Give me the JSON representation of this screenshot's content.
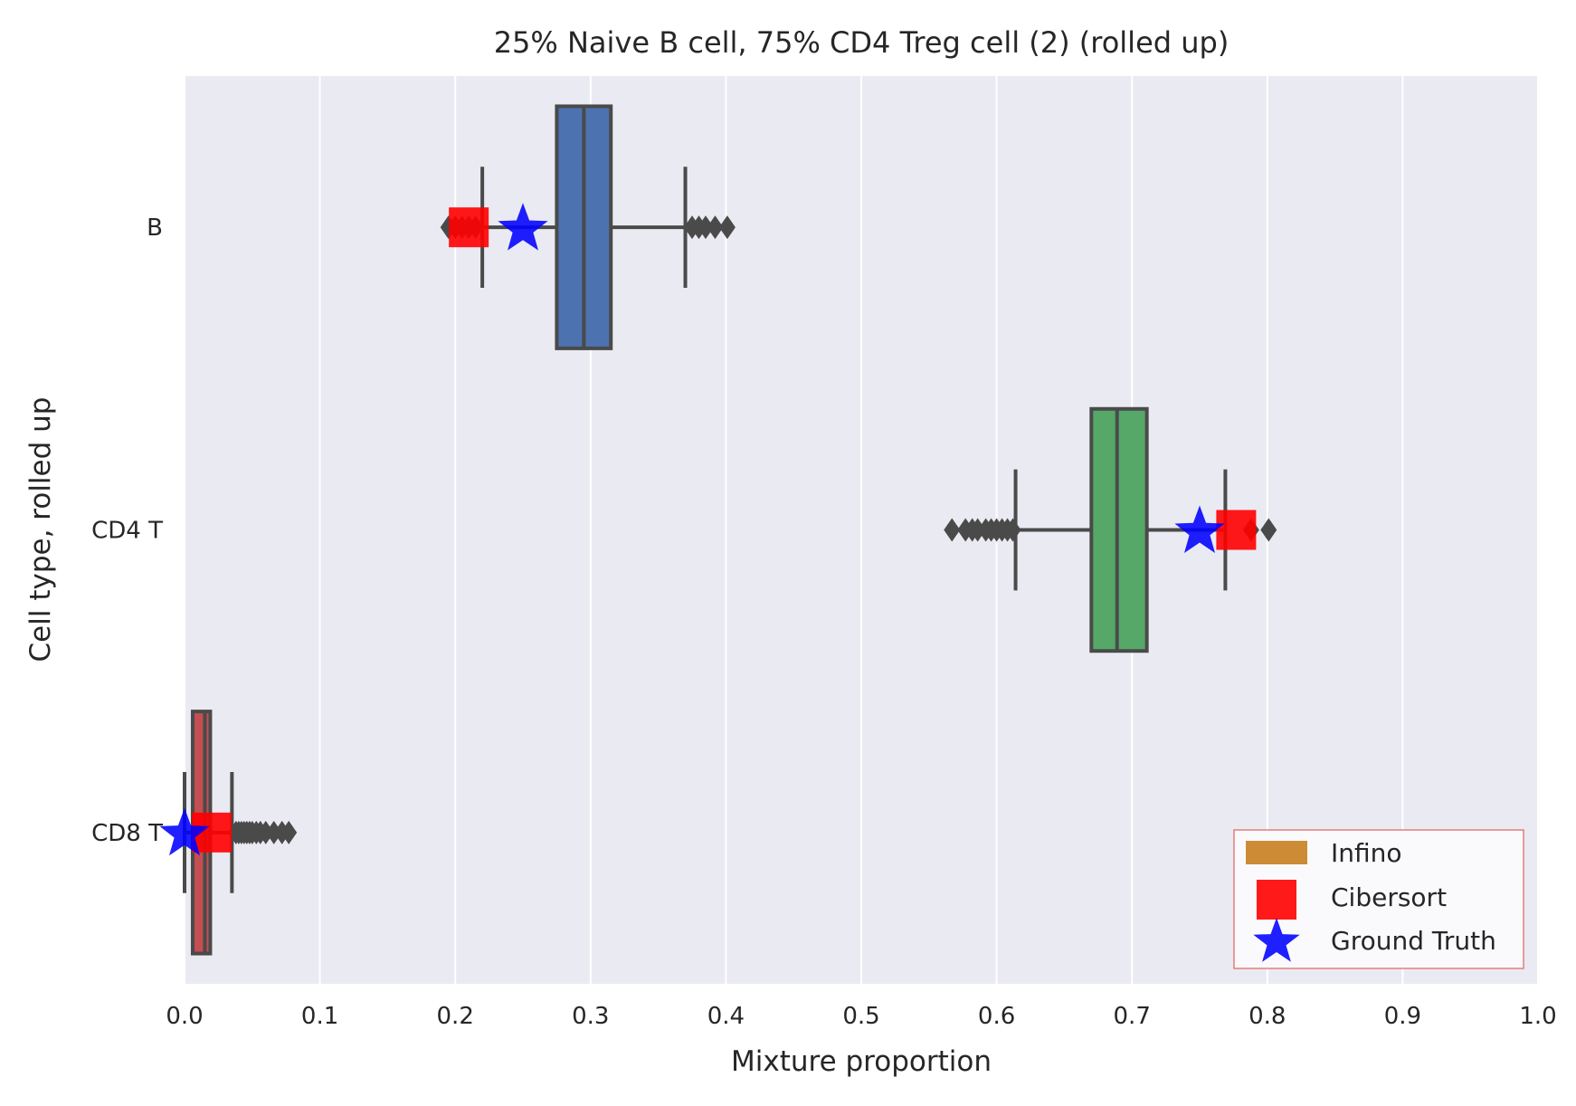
{
  "chart_data": {
    "type": "boxplot",
    "orientation": "horizontal",
    "title": "25% Naive B cell, 75% CD4 Treg cell (2) (rolled up)",
    "xlabel": "Mixture proportion",
    "ylabel": "Cell type, rolled up",
    "xlim": [
      0.0,
      1.0
    ],
    "xticks": [
      "0.0",
      "0.1",
      "0.2",
      "0.3",
      "0.4",
      "0.5",
      "0.6",
      "0.7",
      "0.8",
      "0.9",
      "1.0"
    ],
    "grid": "vertical",
    "categories": [
      "B",
      "CD4 T",
      "CD8 T"
    ],
    "boxes": [
      {
        "category": "B",
        "color": "#4c72b0",
        "whisker_low": 0.22,
        "q1": 0.275,
        "median": 0.295,
        "q3": 0.315,
        "whisker_high": 0.37,
        "outliers": [
          0.195,
          0.2,
          0.205,
          0.21,
          0.215,
          0.375,
          0.38,
          0.385,
          0.392,
          0.401
        ]
      },
      {
        "category": "CD4 T",
        "color": "#55a868",
        "whisker_low": 0.614,
        "q1": 0.67,
        "median": 0.689,
        "q3": 0.711,
        "whisker_high": 0.769,
        "outliers": [
          0.567,
          0.577,
          0.582,
          0.586,
          0.592,
          0.596,
          0.6,
          0.604,
          0.608,
          0.612,
          0.788,
          0.801
        ]
      },
      {
        "category": "CD8 T",
        "color": "#c44e52",
        "whisker_low": 0.0,
        "q1": 0.006,
        "median": 0.015,
        "q3": 0.019,
        "whisker_high": 0.035,
        "outliers": [
          0.038,
          0.04,
          0.042,
          0.044,
          0.046,
          0.048,
          0.05,
          0.053,
          0.056,
          0.06,
          0.066,
          0.072,
          0.077
        ]
      }
    ],
    "cibersort": {
      "color": "#ff0000",
      "values": [
        0.21,
        0.777,
        0.02
      ]
    },
    "ground_truth": {
      "color": "#0000ff",
      "values": [
        0.25,
        0.75,
        0.0
      ]
    },
    "legend": {
      "placement": "bottom-right",
      "entries": [
        {
          "label": "Infino",
          "color": "#cc8b34",
          "marker": "patch"
        },
        {
          "label": "Cibersort",
          "color": "#ff0000",
          "marker": "square"
        },
        {
          "label": "Ground Truth",
          "color": "#0000ff",
          "marker": "star"
        }
      ]
    }
  }
}
